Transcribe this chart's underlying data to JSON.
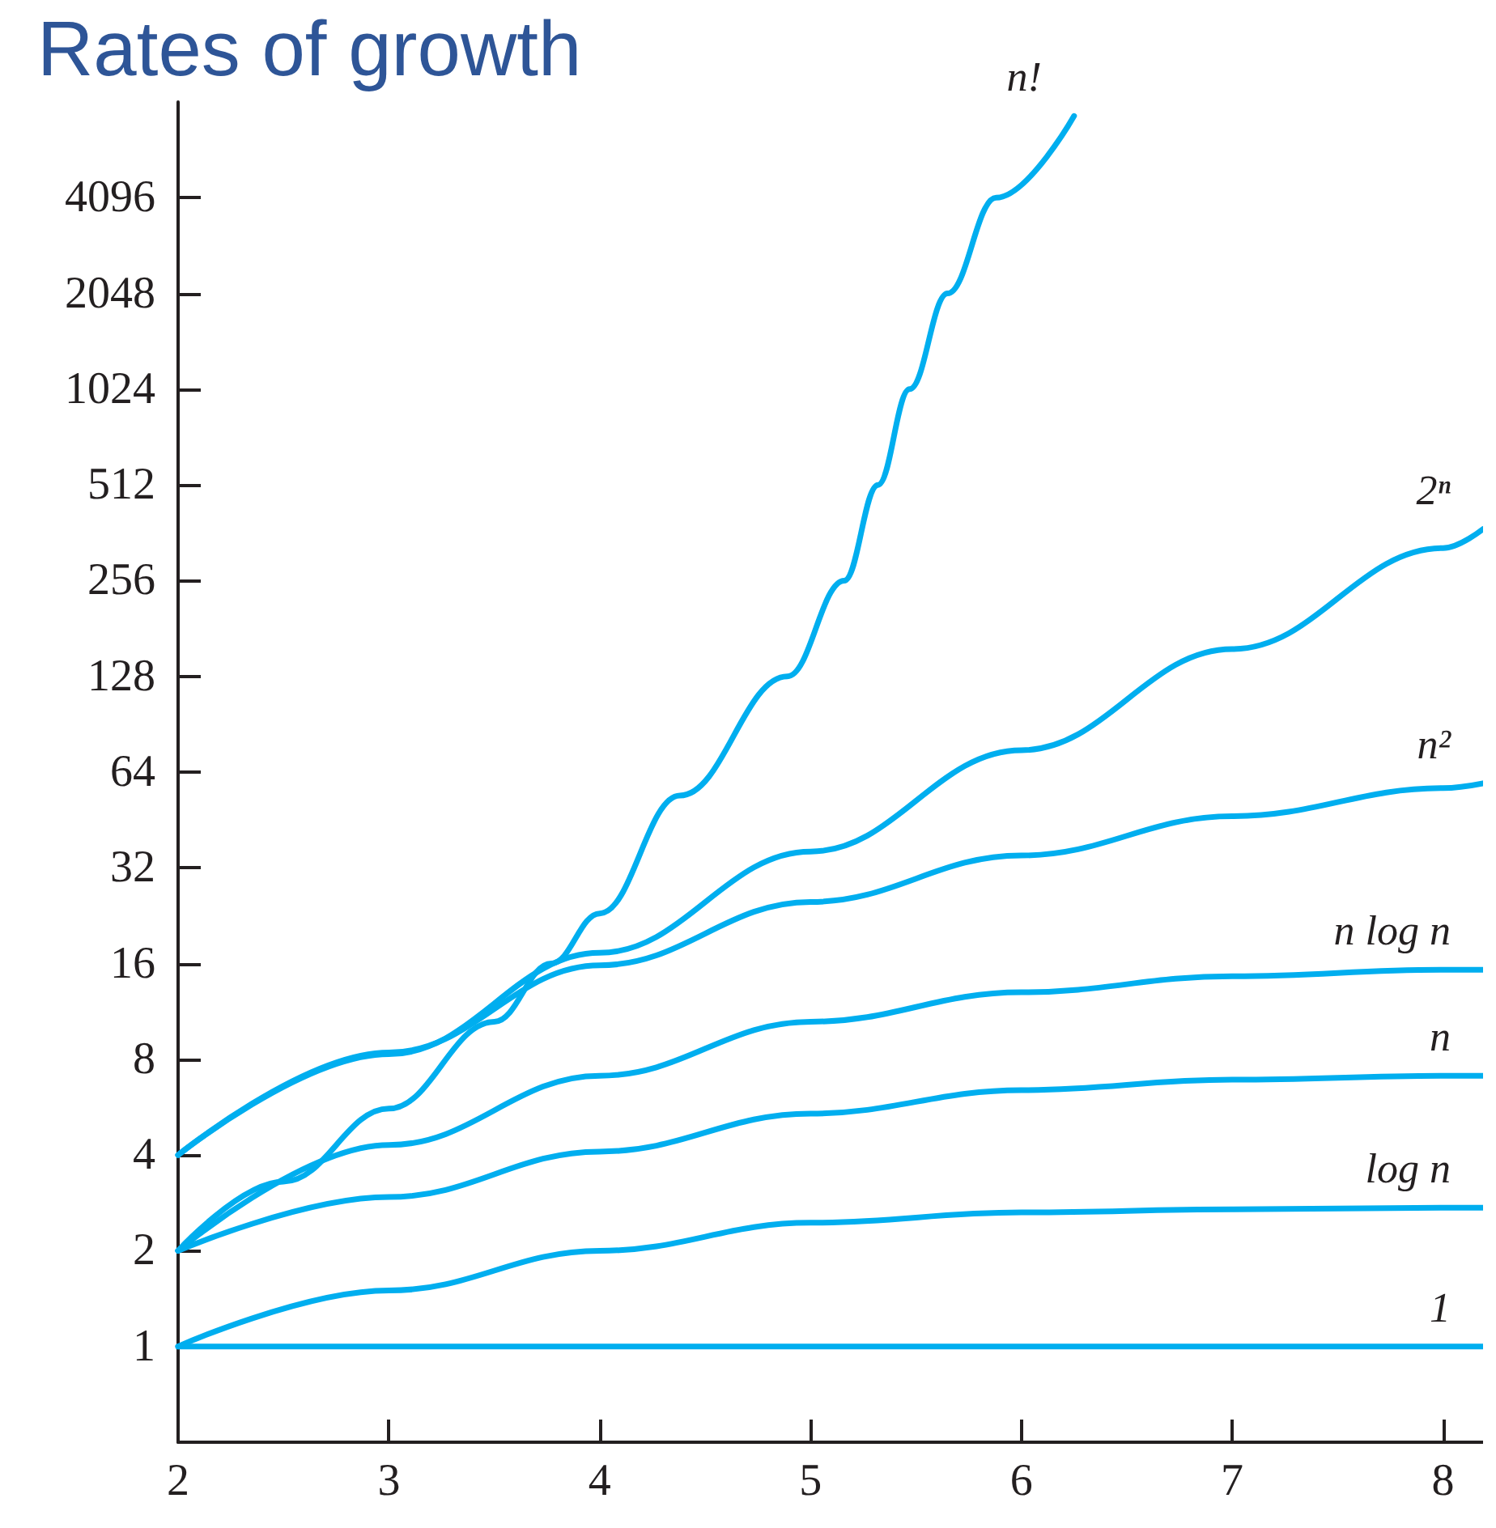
{
  "chart_data": {
    "type": "line",
    "title": "Rates of growth",
    "log": "y",
    "legend": false,
    "marker": "none",
    "line_style": "solid",
    "grid": false,
    "xlim": [
      2,
      8.19
    ],
    "xticks": [
      2,
      3,
      4,
      5,
      6,
      7,
      8
    ],
    "ylim": [
      0.5,
      8192
    ],
    "yticks": [
      1,
      2,
      4,
      8,
      16,
      32,
      64,
      128,
      256,
      512,
      1024,
      2048,
      4096
    ],
    "series": [
      {
        "name": "n!",
        "color": "#00aeef",
        "x": [
          2,
          2.5,
          3,
          3.5,
          3.77,
          4,
          4.38,
          4.89,
          5.16,
          5.32,
          5.47,
          5.65,
          5.88,
          6.25
        ],
        "values": [
          2,
          3.3,
          5.6,
          10.5,
          16,
          23,
          54,
          128,
          256,
          512,
          1024,
          2048,
          4096,
          7400
        ]
      },
      {
        "name": "2ⁿ",
        "color": "#00aeef",
        "x": [
          2,
          3,
          4,
          5,
          6,
          7,
          8,
          8.19
        ],
        "values": [
          4,
          8.3,
          17.3,
          36,
          75,
          156,
          324,
          372
        ]
      },
      {
        "name": "n²",
        "color": "#00aeef",
        "x": [
          2,
          3,
          4,
          5,
          6,
          7,
          8,
          8.19
        ],
        "values": [
          4,
          8.4,
          15.8,
          25,
          35,
          46.5,
          57,
          59
        ]
      },
      {
        "name": "n log n",
        "color": "#00aeef",
        "x": [
          2,
          3,
          4,
          5,
          6,
          7,
          8,
          8.19
        ],
        "values": [
          2,
          4.3,
          7.1,
          10.5,
          13,
          14.6,
          15.3,
          15.3
        ]
      },
      {
        "name": "n",
        "color": "#00aeef",
        "x": [
          2,
          3,
          4,
          5,
          6,
          7,
          8,
          8.19
        ],
        "values": [
          2,
          2.95,
          4.1,
          5.4,
          6.4,
          6.9,
          7.1,
          7.1
        ]
      },
      {
        "name": "log n",
        "color": "#00aeef",
        "x": [
          2,
          3,
          4,
          5,
          6,
          7,
          8,
          8.19
        ],
        "values": [
          1,
          1.5,
          2,
          2.45,
          2.64,
          2.7,
          2.73,
          2.73
        ]
      },
      {
        "name": "1",
        "color": "#00aeef",
        "x": [
          2,
          8.19
        ],
        "values": [
          1,
          1
        ]
      }
    ]
  }
}
